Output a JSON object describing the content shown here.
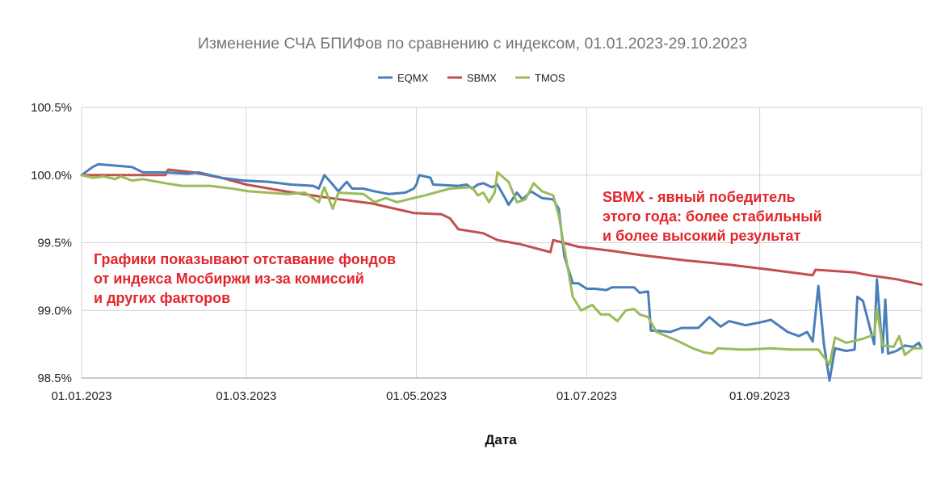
{
  "chart_data": {
    "type": "line",
    "title": "Изменение СЧА БПИФов по сравнению с индексом, 01.01.2023-29.10.2023",
    "xlabel": "Дата",
    "ylabel": "",
    "x_range": [
      "2023-01-01",
      "2023-10-29"
    ],
    "ylim": [
      98.5,
      100.5
    ],
    "y_ticks": [
      "98.5%",
      "99.0%",
      "99.5%",
      "100.0%",
      "100.5%"
    ],
    "x_ticks": [
      {
        "label": "01.01.2023",
        "date": "2023-01-01"
      },
      {
        "label": "01.03.2023",
        "date": "2023-03-01"
      },
      {
        "label": "01.05.2023",
        "date": "2023-05-01"
      },
      {
        "label": "01.07.2023",
        "date": "2023-07-01"
      },
      {
        "label": "01.09.2023",
        "date": "2023-09-01"
      }
    ],
    "grid": true,
    "legend_position": "top",
    "series": [
      {
        "name": "EQMX",
        "color": "#4a7ebb",
        "points": [
          [
            "2023-01-01",
            100.0
          ],
          [
            "2023-01-05",
            100.06
          ],
          [
            "2023-01-07",
            100.08
          ],
          [
            "2023-01-13",
            100.07
          ],
          [
            "2023-01-19",
            100.06
          ],
          [
            "2023-01-23",
            100.02
          ],
          [
            "2023-01-31",
            100.02
          ],
          [
            "2023-02-08",
            100.01
          ],
          [
            "2023-02-12",
            100.02
          ],
          [
            "2023-02-20",
            99.98
          ],
          [
            "2023-02-28",
            99.96
          ],
          [
            "2023-03-09",
            99.95
          ],
          [
            "2023-03-17",
            99.93
          ],
          [
            "2023-03-25",
            99.92
          ],
          [
            "2023-03-27",
            99.9
          ],
          [
            "2023-03-29",
            100.0
          ],
          [
            "2023-04-01",
            99.93
          ],
          [
            "2023-04-03",
            99.88
          ],
          [
            "2023-04-06",
            99.95
          ],
          [
            "2023-04-08",
            99.9
          ],
          [
            "2023-04-12",
            99.9
          ],
          [
            "2023-04-16",
            99.88
          ],
          [
            "2023-04-21",
            99.86
          ],
          [
            "2023-04-27",
            99.87
          ],
          [
            "2023-04-30",
            99.9
          ],
          [
            "2023-05-01",
            99.93
          ],
          [
            "2023-05-02",
            100.0
          ],
          [
            "2023-05-06",
            99.98
          ],
          [
            "2023-05-07",
            99.93
          ],
          [
            "2023-05-16",
            99.92
          ],
          [
            "2023-05-19",
            99.93
          ],
          [
            "2023-05-21",
            99.9
          ],
          [
            "2023-05-23",
            99.93
          ],
          [
            "2023-05-25",
            99.94
          ],
          [
            "2023-05-28",
            99.91
          ],
          [
            "2023-05-30",
            99.93
          ],
          [
            "2023-06-02",
            99.82
          ],
          [
            "2023-06-03",
            99.78
          ],
          [
            "2023-06-06",
            99.87
          ],
          [
            "2023-06-08",
            99.82
          ],
          [
            "2023-06-11",
            99.88
          ],
          [
            "2023-06-15",
            99.83
          ],
          [
            "2023-06-19",
            99.82
          ],
          [
            "2023-06-21",
            99.75
          ],
          [
            "2023-06-23",
            99.4
          ],
          [
            "2023-06-26",
            99.2
          ],
          [
            "2023-06-28",
            99.2
          ],
          [
            "2023-07-01",
            99.16
          ],
          [
            "2023-07-04",
            99.16
          ],
          [
            "2023-07-08",
            99.15
          ],
          [
            "2023-07-10",
            99.17
          ],
          [
            "2023-07-18",
            99.17
          ],
          [
            "2023-07-20",
            99.13
          ],
          [
            "2023-07-23",
            99.14
          ],
          [
            "2023-07-24",
            98.85
          ],
          [
            "2023-07-26",
            98.85
          ],
          [
            "2023-07-31",
            98.84
          ],
          [
            "2023-08-04",
            98.87
          ],
          [
            "2023-08-10",
            98.87
          ],
          [
            "2023-08-14",
            98.95
          ],
          [
            "2023-08-18",
            98.88
          ],
          [
            "2023-08-21",
            98.92
          ],
          [
            "2023-08-27",
            98.89
          ],
          [
            "2023-09-01",
            98.91
          ],
          [
            "2023-09-05",
            98.93
          ],
          [
            "2023-09-07",
            98.9
          ],
          [
            "2023-09-11",
            98.84
          ],
          [
            "2023-09-15",
            98.81
          ],
          [
            "2023-09-18",
            98.84
          ],
          [
            "2023-09-20",
            98.77
          ],
          [
            "2023-09-22",
            99.18
          ],
          [
            "2023-09-24",
            98.75
          ],
          [
            "2023-09-26",
            98.48
          ],
          [
            "2023-09-28",
            98.72
          ],
          [
            "2023-10-02",
            98.7
          ],
          [
            "2023-10-05",
            98.71
          ],
          [
            "2023-10-06",
            99.1
          ],
          [
            "2023-10-08",
            99.07
          ],
          [
            "2023-10-12",
            98.75
          ],
          [
            "2023-10-13",
            99.23
          ],
          [
            "2023-10-15",
            98.69
          ],
          [
            "2023-10-16",
            99.08
          ],
          [
            "2023-10-17",
            98.68
          ],
          [
            "2023-10-20",
            98.7
          ],
          [
            "2023-10-23",
            98.74
          ],
          [
            "2023-10-26",
            98.73
          ],
          [
            "2023-10-28",
            98.76
          ],
          [
            "2023-10-29",
            98.72
          ]
        ]
      },
      {
        "name": "SBMX",
        "color": "#c0504d",
        "points": [
          [
            "2023-01-01",
            100.0
          ],
          [
            "2023-01-31",
            100.0
          ],
          [
            "2023-02-01",
            100.04
          ],
          [
            "2023-02-10",
            100.02
          ],
          [
            "2023-02-20",
            99.98
          ],
          [
            "2023-03-01",
            99.93
          ],
          [
            "2023-03-15",
            99.88
          ],
          [
            "2023-03-31",
            99.83
          ],
          [
            "2023-04-15",
            99.79
          ],
          [
            "2023-04-30",
            99.72
          ],
          [
            "2023-05-10",
            99.71
          ],
          [
            "2023-05-13",
            99.68
          ],
          [
            "2023-05-16",
            99.6
          ],
          [
            "2023-05-25",
            99.57
          ],
          [
            "2023-05-30",
            99.52
          ],
          [
            "2023-06-07",
            99.49
          ],
          [
            "2023-06-18",
            99.43
          ],
          [
            "2023-06-19",
            99.52
          ],
          [
            "2023-06-28",
            99.47
          ],
          [
            "2023-07-10",
            99.44
          ],
          [
            "2023-07-20",
            99.41
          ],
          [
            "2023-08-05",
            99.37
          ],
          [
            "2023-08-20",
            99.34
          ],
          [
            "2023-09-05",
            99.3
          ],
          [
            "2023-09-20",
            99.26
          ],
          [
            "2023-09-21",
            99.3
          ],
          [
            "2023-10-05",
            99.28
          ],
          [
            "2023-10-10",
            99.26
          ],
          [
            "2023-10-20",
            99.23
          ],
          [
            "2023-10-29",
            99.19
          ]
        ]
      },
      {
        "name": "TMOS",
        "color": "#9bbb59",
        "points": [
          [
            "2023-01-01",
            100.0
          ],
          [
            "2023-01-05",
            99.98
          ],
          [
            "2023-01-09",
            99.99
          ],
          [
            "2023-01-13",
            99.97
          ],
          [
            "2023-01-15",
            99.99
          ],
          [
            "2023-01-19",
            99.96
          ],
          [
            "2023-01-23",
            99.97
          ],
          [
            "2023-01-31",
            99.94
          ],
          [
            "2023-02-06",
            99.92
          ],
          [
            "2023-02-16",
            99.92
          ],
          [
            "2023-02-24",
            99.9
          ],
          [
            "2023-03-02",
            99.88
          ],
          [
            "2023-03-16",
            99.86
          ],
          [
            "2023-03-22",
            99.87
          ],
          [
            "2023-03-27",
            99.8
          ],
          [
            "2023-03-29",
            99.91
          ],
          [
            "2023-04-01",
            99.75
          ],
          [
            "2023-04-03",
            99.87
          ],
          [
            "2023-04-12",
            99.86
          ],
          [
            "2023-04-16",
            99.8
          ],
          [
            "2023-04-20",
            99.83
          ],
          [
            "2023-04-24",
            99.8
          ],
          [
            "2023-04-28",
            99.82
          ],
          [
            "2023-05-04",
            99.85
          ],
          [
            "2023-05-13",
            99.9
          ],
          [
            "2023-05-21",
            99.91
          ],
          [
            "2023-05-23",
            99.85
          ],
          [
            "2023-05-25",
            99.87
          ],
          [
            "2023-05-27",
            99.8
          ],
          [
            "2023-05-29",
            99.87
          ],
          [
            "2023-05-30",
            100.02
          ],
          [
            "2023-06-03",
            99.95
          ],
          [
            "2023-06-06",
            99.8
          ],
          [
            "2023-06-09",
            99.82
          ],
          [
            "2023-06-12",
            99.94
          ],
          [
            "2023-06-15",
            99.88
          ],
          [
            "2023-06-19",
            99.85
          ],
          [
            "2023-06-21",
            99.7
          ],
          [
            "2023-06-26",
            99.1
          ],
          [
            "2023-06-29",
            99.0
          ],
          [
            "2023-07-03",
            99.04
          ],
          [
            "2023-07-06",
            98.97
          ],
          [
            "2023-07-09",
            98.97
          ],
          [
            "2023-07-12",
            98.92
          ],
          [
            "2023-07-15",
            99.0
          ],
          [
            "2023-07-18",
            99.01
          ],
          [
            "2023-07-20",
            98.97
          ],
          [
            "2023-07-23",
            98.95
          ],
          [
            "2023-07-26",
            98.84
          ],
          [
            "2023-08-02",
            98.78
          ],
          [
            "2023-08-05",
            98.75
          ],
          [
            "2023-08-08",
            98.72
          ],
          [
            "2023-08-12",
            98.69
          ],
          [
            "2023-08-15",
            98.68
          ],
          [
            "2023-08-17",
            98.72
          ],
          [
            "2023-08-25",
            98.71
          ],
          [
            "2023-08-28",
            98.71
          ],
          [
            "2023-09-05",
            98.72
          ],
          [
            "2023-09-12",
            98.71
          ],
          [
            "2023-09-22",
            98.71
          ],
          [
            "2023-09-26",
            98.6
          ],
          [
            "2023-09-28",
            98.8
          ],
          [
            "2023-10-02",
            98.76
          ],
          [
            "2023-10-08",
            98.79
          ],
          [
            "2023-10-12",
            98.82
          ],
          [
            "2023-10-13",
            99.01
          ],
          [
            "2023-10-15",
            98.74
          ],
          [
            "2023-10-19",
            98.73
          ],
          [
            "2023-10-21",
            98.81
          ],
          [
            "2023-10-23",
            98.67
          ],
          [
            "2023-10-26",
            98.72
          ],
          [
            "2023-10-29",
            98.72
          ]
        ]
      }
    ],
    "annotations": [
      {
        "lines": [
          "SBMX - явный победитель",
          "этого года: более стабильный",
          "и более высокий результат"
        ],
        "color": "#e3262b"
      },
      {
        "lines": [
          "Графики показывают отставание фондов",
          "от индекса Мосбиржи из-за комиссий",
          "и других факторов"
        ],
        "color": "#e3262b"
      }
    ]
  }
}
